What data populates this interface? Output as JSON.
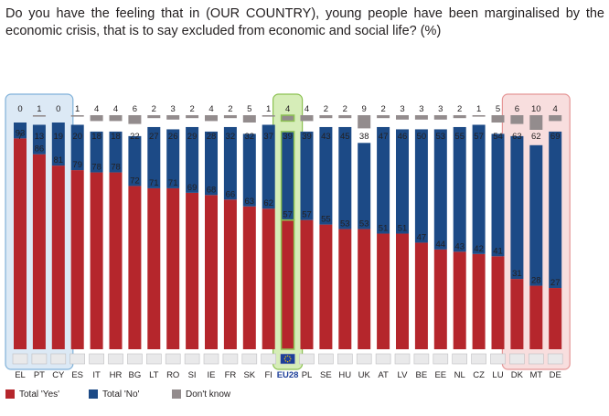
{
  "question": "Do you have the feeling that in (OUR COUNTRY), young people have been marginalised by the economic crisis, that is to say excluded from economic and social life? (%)",
  "colors": {
    "yes": "#b5262c",
    "no": "#1c4a86",
    "dk": "#938c8d",
    "box_blue_fill": "#dce9f5",
    "box_blue_stroke": "#7fb1d9",
    "box_green_fill": "#d6edb8",
    "box_green_stroke": "#8cc152",
    "box_red_fill": "#f8dede",
    "box_red_stroke": "#e59696"
  },
  "legend": {
    "yes": "Total 'Yes'",
    "no": "Total 'No'",
    "dk": "Don't know"
  },
  "chart_data": {
    "type": "bar",
    "stacked": true,
    "ylim": [
      0,
      100
    ],
    "categories": [
      "EL",
      "PT",
      "CY",
      "ES",
      "IT",
      "HR",
      "BG",
      "LT",
      "RO",
      "SI",
      "IE",
      "FR",
      "SK",
      "FI",
      "EU28",
      "PL",
      "SE",
      "HU",
      "UK",
      "AT",
      "LV",
      "BE",
      "EE",
      "NL",
      "CZ",
      "LU",
      "DK",
      "MT",
      "DE"
    ],
    "series": [
      {
        "name": "Total 'Yes'",
        "values": [
          93,
          86,
          81,
          79,
          78,
          78,
          72,
          71,
          71,
          69,
          68,
          66,
          63,
          62,
          57,
          57,
          55,
          53,
          53,
          51,
          51,
          47,
          44,
          43,
          42,
          41,
          31,
          28,
          27
        ]
      },
      {
        "name": "Total 'No'",
        "values": [
          7,
          13,
          19,
          20,
          18,
          18,
          22,
          27,
          26,
          29,
          28,
          32,
          32,
          37,
          39,
          39,
          43,
          45,
          38,
          47,
          46,
          50,
          53,
          55,
          57,
          54,
          63,
          62,
          69
        ]
      },
      {
        "name": "Don't know",
        "values": [
          0,
          1,
          0,
          1,
          4,
          4,
          6,
          2,
          3,
          2,
          4,
          2,
          5,
          1,
          4,
          4,
          2,
          2,
          9,
          2,
          3,
          3,
          3,
          2,
          1,
          5,
          6,
          10,
          4
        ]
      }
    ],
    "highlight_groups": [
      {
        "categories": [
          "EL",
          "PT",
          "CY"
        ],
        "color": "blue"
      },
      {
        "categories": [
          "EU28"
        ],
        "color": "green"
      },
      {
        "categories": [
          "DK",
          "MT",
          "DE"
        ],
        "color": "red"
      }
    ]
  }
}
